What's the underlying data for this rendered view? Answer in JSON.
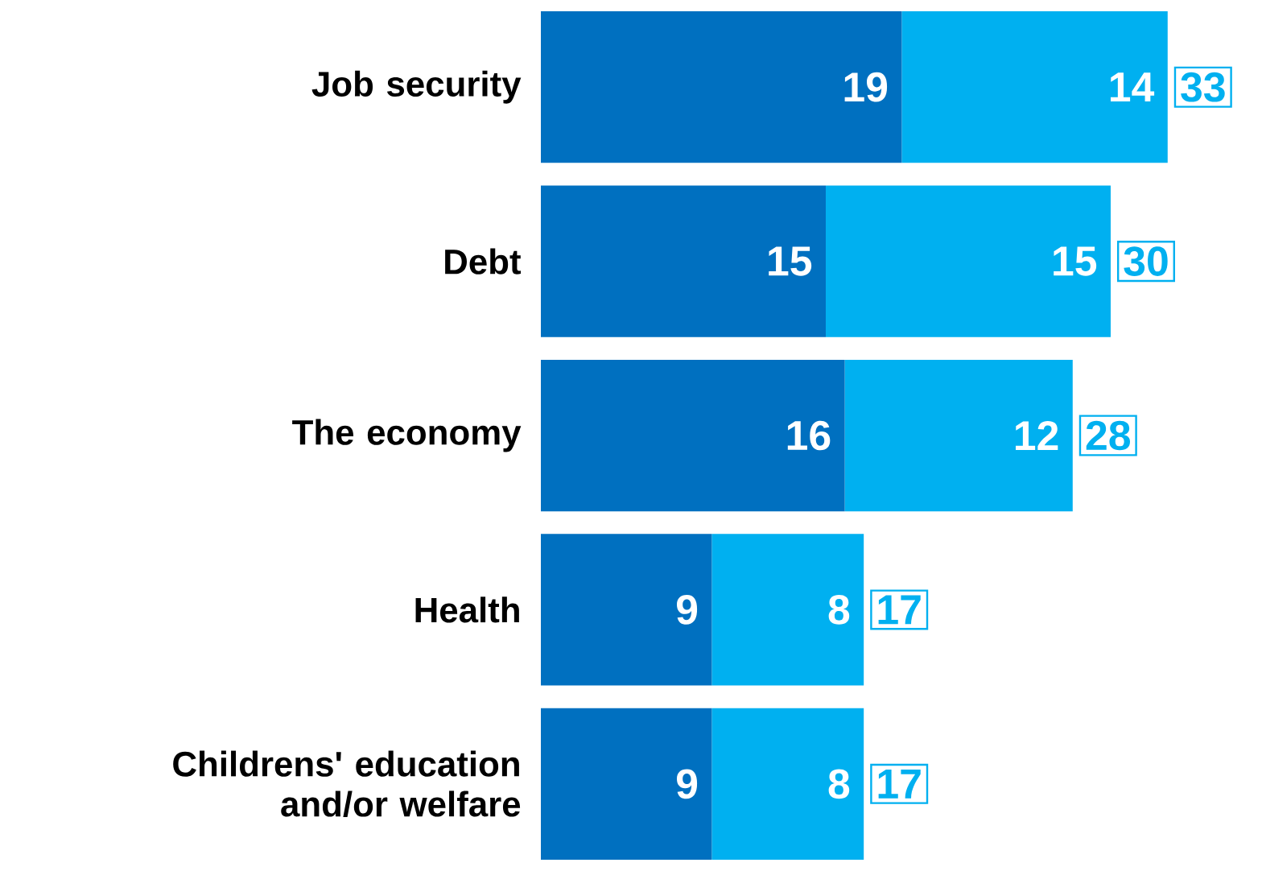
{
  "chart_data": {
    "type": "bar",
    "orientation": "horizontal",
    "stacked": true,
    "data_labels": true,
    "categories": [
      "Job security",
      "Debt",
      "The economy",
      "Health",
      "Childrens' education and/or welfare"
    ],
    "series": [
      {
        "color": "#0070c0",
        "values": [
          19,
          15,
          16,
          9,
          9
        ]
      },
      {
        "color": "#00b0f0",
        "values": [
          14,
          15,
          12,
          8,
          8
        ]
      }
    ],
    "totals": [
      "33",
      "30",
      "28",
      "17",
      "17"
    ]
  }
}
